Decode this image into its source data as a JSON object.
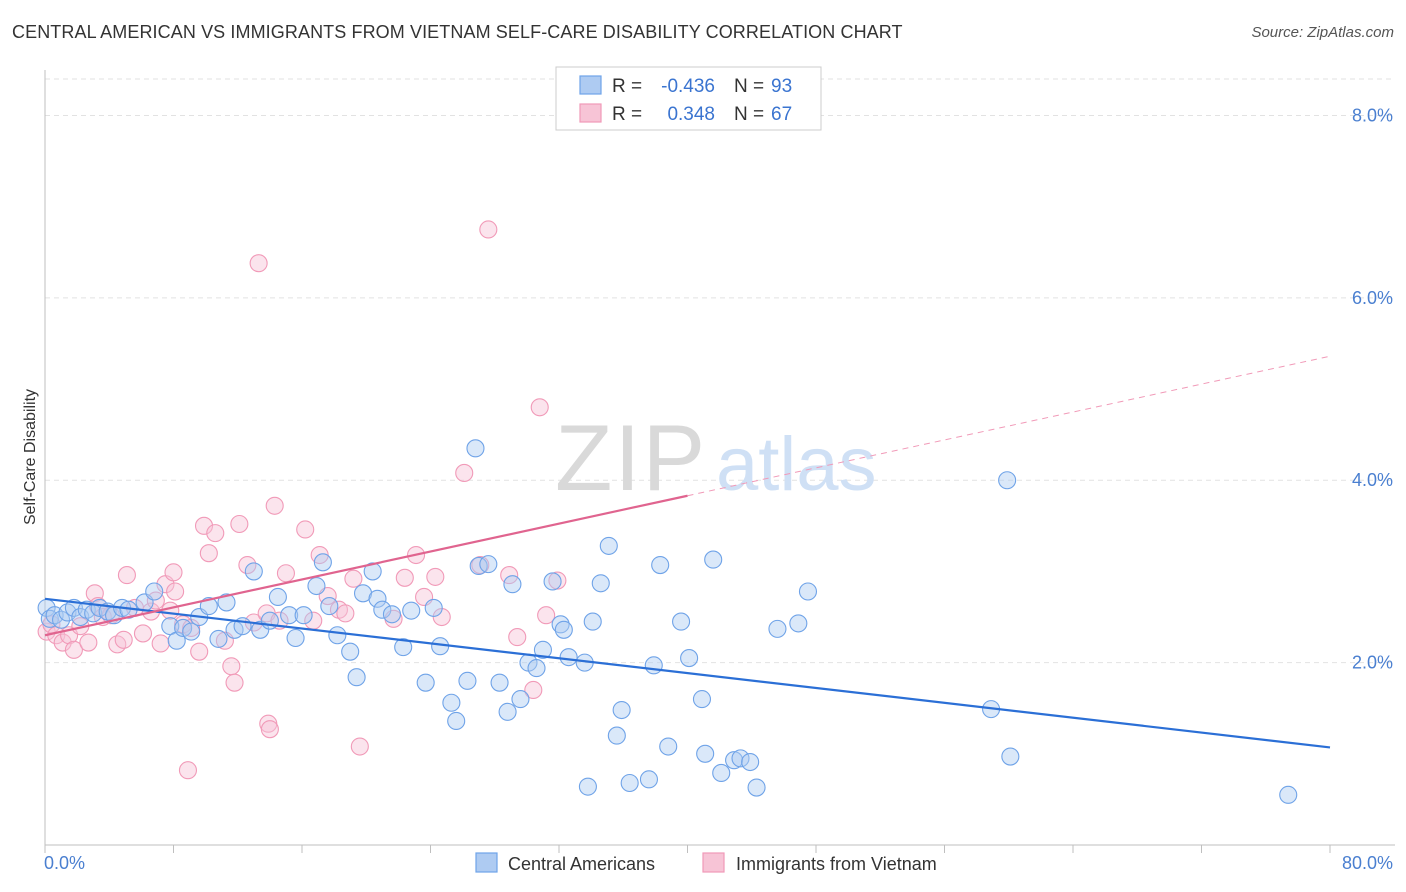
{
  "title": "CENTRAL AMERICAN VS IMMIGRANTS FROM VIETNAM SELF-CARE DISABILITY CORRELATION CHART",
  "source": "Source: ZipAtlas.com",
  "watermark": {
    "zip": "ZIP",
    "atlas": "atlas"
  },
  "colors": {
    "blue": "#6fa3e8",
    "blue_fill": "#aecbf2",
    "blue_line": "#2b6fd6",
    "pink": "#f19ab8",
    "pink_fill": "#f7c4d6",
    "pink_line": "#e0648f",
    "tick_label": "#4a7fd0"
  },
  "legend": [
    {
      "r_label": "R =",
      "r_value": "-0.436",
      "n_label": "N =",
      "n_value": "93"
    },
    {
      "r_label": "R =",
      "r_value": "0.348",
      "n_label": "N =",
      "n_value": "67"
    }
  ],
  "bottom_legend": [
    "Central Americans",
    "Immigrants from Vietnam"
  ],
  "chart_data": {
    "type": "scatter",
    "title": "CENTRAL AMERICAN VS IMMIGRANTS FROM VIETNAM SELF-CARE DISABILITY CORRELATION CHART",
    "xlabel": "",
    "ylabel": "Self-Care Disability",
    "xlim": [
      0,
      80
    ],
    "ylim": [
      0,
      8.4
    ],
    "x_tick_labels": [
      "0.0%",
      "80.0%"
    ],
    "y_ticks": [
      2,
      4,
      6,
      8
    ],
    "y_tick_labels": [
      "2.0%",
      "4.0%",
      "6.0%",
      "8.0%"
    ],
    "grid": "horizontal dashed",
    "legend_position": "top-center",
    "series": [
      {
        "name": "Central Americans",
        "r": -0.436,
        "n": 93,
        "trend": {
          "x": [
            0,
            80
          ],
          "y": [
            2.7,
            1.07
          ]
        },
        "points": [
          [
            0.1,
            2.6
          ],
          [
            0.3,
            2.48
          ],
          [
            0.6,
            2.52
          ],
          [
            1.0,
            2.47
          ],
          [
            1.4,
            2.55
          ],
          [
            1.8,
            2.6
          ],
          [
            2.2,
            2.5
          ],
          [
            2.6,
            2.58
          ],
          [
            3.0,
            2.54
          ],
          [
            3.4,
            2.6
          ],
          [
            3.9,
            2.56
          ],
          [
            4.3,
            2.52
          ],
          [
            4.8,
            2.6
          ],
          [
            5.2,
            2.58
          ],
          [
            6.2,
            2.66
          ],
          [
            6.8,
            2.78
          ],
          [
            7.8,
            2.4
          ],
          [
            8.2,
            2.24
          ],
          [
            8.6,
            2.38
          ],
          [
            9.1,
            2.34
          ],
          [
            9.6,
            2.5
          ],
          [
            10.2,
            2.62
          ],
          [
            10.8,
            2.26
          ],
          [
            11.3,
            2.66
          ],
          [
            11.8,
            2.36
          ],
          [
            12.3,
            2.4
          ],
          [
            13.0,
            3.0
          ],
          [
            13.4,
            2.36
          ],
          [
            14.0,
            2.46
          ],
          [
            14.5,
            2.72
          ],
          [
            15.2,
            2.52
          ],
          [
            15.6,
            2.27
          ],
          [
            16.1,
            2.52
          ],
          [
            16.9,
            2.84
          ],
          [
            17.3,
            3.1
          ],
          [
            17.7,
            2.62
          ],
          [
            18.2,
            2.3
          ],
          [
            19.0,
            2.12
          ],
          [
            19.4,
            1.84
          ],
          [
            19.8,
            2.76
          ],
          [
            20.4,
            3.0
          ],
          [
            20.7,
            2.7
          ],
          [
            21.0,
            2.58
          ],
          [
            21.6,
            2.53
          ],
          [
            22.3,
            2.17
          ],
          [
            22.8,
            2.57
          ],
          [
            23.7,
            1.78
          ],
          [
            24.2,
            2.6
          ],
          [
            24.6,
            2.18
          ],
          [
            25.3,
            1.56
          ],
          [
            25.6,
            1.36
          ],
          [
            26.3,
            1.8
          ],
          [
            26.8,
            4.35
          ],
          [
            27.0,
            3.06
          ],
          [
            27.6,
            3.08
          ],
          [
            28.3,
            1.78
          ],
          [
            28.8,
            1.46
          ],
          [
            29.1,
            2.86
          ],
          [
            29.6,
            1.6
          ],
          [
            30.1,
            2.0
          ],
          [
            30.6,
            1.94
          ],
          [
            31.0,
            2.14
          ],
          [
            31.6,
            2.89
          ],
          [
            32.1,
            2.42
          ],
          [
            32.3,
            2.36
          ],
          [
            32.6,
            2.06
          ],
          [
            33.6,
            2.0
          ],
          [
            33.8,
            0.64
          ],
          [
            34.1,
            2.45
          ],
          [
            34.6,
            2.87
          ],
          [
            35.1,
            3.28
          ],
          [
            35.6,
            1.2
          ],
          [
            35.9,
            1.48
          ],
          [
            36.4,
            0.68
          ],
          [
            37.6,
            0.72
          ],
          [
            37.9,
            1.97
          ],
          [
            38.3,
            3.07
          ],
          [
            38.8,
            1.08
          ],
          [
            39.6,
            2.45
          ],
          [
            40.1,
            2.05
          ],
          [
            40.9,
            1.6
          ],
          [
            41.1,
            1.0
          ],
          [
            41.6,
            3.13
          ],
          [
            42.1,
            0.79
          ],
          [
            42.9,
            0.93
          ],
          [
            43.3,
            0.95
          ],
          [
            43.9,
            0.91
          ],
          [
            44.3,
            0.63
          ],
          [
            45.6,
            2.37
          ],
          [
            46.9,
            2.43
          ],
          [
            47.5,
            2.78
          ],
          [
            58.9,
            1.49
          ],
          [
            59.9,
            4.0
          ],
          [
            60.1,
            0.97
          ],
          [
            77.4,
            0.55
          ]
        ]
      },
      {
        "name": "Immigrants from Vietnam",
        "r": 0.348,
        "n": 67,
        "trend": {
          "x": [
            0,
            40
          ],
          "y": [
            2.3,
            3.83
          ]
        },
        "trend_extension": {
          "x": [
            40,
            80
          ],
          "y": [
            3.83,
            5.36
          ]
        },
        "points": [
          [
            0.1,
            2.34
          ],
          [
            0.4,
            2.42
          ],
          [
            0.7,
            2.3
          ],
          [
            1.1,
            2.22
          ],
          [
            1.5,
            2.3
          ],
          [
            1.8,
            2.14
          ],
          [
            2.2,
            2.4
          ],
          [
            2.7,
            2.22
          ],
          [
            3.1,
            2.76
          ],
          [
            3.3,
            2.62
          ],
          [
            3.6,
            2.5
          ],
          [
            4.1,
            2.52
          ],
          [
            4.5,
            2.2
          ],
          [
            4.9,
            2.25
          ],
          [
            5.1,
            2.96
          ],
          [
            5.6,
            2.6
          ],
          [
            6.1,
            2.32
          ],
          [
            6.6,
            2.56
          ],
          [
            6.9,
            2.68
          ],
          [
            7.2,
            2.21
          ],
          [
            7.5,
            2.86
          ],
          [
            7.8,
            2.57
          ],
          [
            8.1,
            2.78
          ],
          [
            8.0,
            2.99
          ],
          [
            8.6,
            2.42
          ],
          [
            9.1,
            2.38
          ],
          [
            8.9,
            0.82
          ],
          [
            9.6,
            2.12
          ],
          [
            9.9,
            3.5
          ],
          [
            10.2,
            3.2
          ],
          [
            10.6,
            3.42
          ],
          [
            11.2,
            2.24
          ],
          [
            11.6,
            1.96
          ],
          [
            11.8,
            1.78
          ],
          [
            12.1,
            3.52
          ],
          [
            12.6,
            3.07
          ],
          [
            13.0,
            2.44
          ],
          [
            13.3,
            6.38
          ],
          [
            13.8,
            2.54
          ],
          [
            13.9,
            1.33
          ],
          [
            14.0,
            1.27
          ],
          [
            14.3,
            3.72
          ],
          [
            14.6,
            2.46
          ],
          [
            15.0,
            2.98
          ],
          [
            16.2,
            3.46
          ],
          [
            16.7,
            2.46
          ],
          [
            17.1,
            3.18
          ],
          [
            17.6,
            2.73
          ],
          [
            18.3,
            2.58
          ],
          [
            18.7,
            2.54
          ],
          [
            19.2,
            2.92
          ],
          [
            19.6,
            1.08
          ],
          [
            21.7,
            2.48
          ],
          [
            22.4,
            2.93
          ],
          [
            23.1,
            3.18
          ],
          [
            23.6,
            2.72
          ],
          [
            24.3,
            2.94
          ],
          [
            24.7,
            2.5
          ],
          [
            26.1,
            4.08
          ],
          [
            27.1,
            3.07
          ],
          [
            27.6,
            6.75
          ],
          [
            28.9,
            2.96
          ],
          [
            29.4,
            2.28
          ],
          [
            30.4,
            1.7
          ],
          [
            30.8,
            4.8
          ],
          [
            31.2,
            2.52
          ],
          [
            31.9,
            2.9
          ]
        ]
      }
    ]
  }
}
